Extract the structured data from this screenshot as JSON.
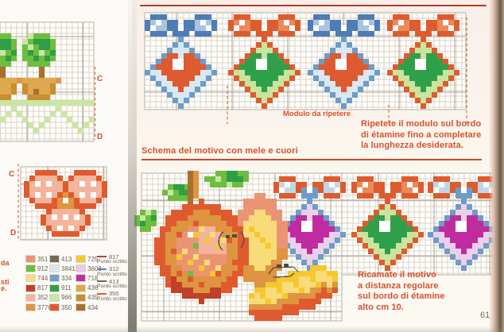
{
  "page": {
    "number": "61"
  },
  "left_page": {
    "fragments": [
      "da",
      "sti",
      "e."
    ],
    "markers": {
      "top": "C",
      "bottom": "D"
    },
    "legend": {
      "columns": [
        [
          {
            "code": "351"
          },
          {
            "code": "912"
          },
          {
            "code": "744"
          },
          {
            "code": "817"
          },
          {
            "code": "352"
          },
          {
            "code": "3776"
          }
        ],
        [
          {
            "code": "413"
          },
          {
            "code": "3841"
          },
          {
            "code": "334"
          },
          {
            "code": "911"
          },
          {
            "code": "966"
          },
          {
            "code": "350"
          }
        ],
        [
          {
            "code": "725"
          },
          {
            "code": "3608"
          },
          {
            "code": "718"
          },
          {
            "code": "436"
          },
          {
            "code": "435"
          },
          {
            "code": "434"
          }
        ]
      ],
      "stitch_lines": [
        {
          "code": "817",
          "label": "Punto scritto"
        },
        {
          "code": "312",
          "label": "Punto scritto"
        },
        {
          "code": "413",
          "label": "Punto scritto"
        },
        {
          "code": "350",
          "label": "Punto scritto"
        }
      ]
    }
  },
  "right_page": {
    "top_chart": {
      "caption": "Modulo da ripetere",
      "ornament_sequence": [
        "blue",
        "green",
        "blue",
        "green"
      ]
    },
    "repeat_note": "Ripetete il modulo sul bordo\ndi étamine fino a completare\nla lunghezza desiderata.",
    "section_title": "Schema del motivo con mele e cuori",
    "bottom_chart": {
      "ornament_sequence": [
        "lilac",
        "green",
        "lilac"
      ],
      "motifs": [
        "apple",
        "apple-half",
        "apple-slice",
        "heart-ornaments"
      ]
    },
    "stitch_note": "Ricamate il motivo\na distanza regolare\nsul bordo di étamine\nalto cm 10."
  },
  "palette": {
    "351": "#EA9473",
    "912": "#6DBE3E",
    "744": "#F8DC7A",
    "817": "#C04028",
    "352": "#F4B49C",
    "3776": "#DE9440",
    "413": "#6F6B55",
    "3841": "#D9E7EF",
    "334": "#6F9FCC",
    "911": "#2F9E44",
    "966": "#C9E6A2",
    "350": "#E05A30",
    "725": "#F6C82E",
    "3608": "#ECCAE6",
    "718": "#C22EA0",
    "436": "#DCA94E",
    "435": "#C98E2F",
    "434": "#A8702F",
    "312": "#5C7FAE",
    "white": "#FFFFFF"
  },
  "ornament_variants": {
    "blue": {
      "bow": "#4E7CB4",
      "bow_fill": "#A9C4DC",
      "knot": "#4E7CB4",
      "border": "#6E9CC8",
      "field": "#D9E8F0",
      "heart": "#DE5A30"
    },
    "green": {
      "bow": "#DD5C2E",
      "bow_fill": "#E98A5A",
      "knot": "#DD5C2E",
      "border": "#DD5C2E",
      "field": "#C9E49E",
      "heart": "#2FA04A"
    },
    "lilac": {
      "bow": "#DD5C2E",
      "bow_fill": "#BFD6E8",
      "knot": "#6E9CC8",
      "border": "#6E9CC8",
      "field": "#EBD0E9",
      "heart": "#C02CA0"
    }
  },
  "motif_maps": {
    "ornament_bow": [
      ".OOO.....OOO.",
      "OFWFOO.OOFWFO",
      "OWFFOKWKOFFWO",
      ".OOO.KKK.OOO."
    ],
    "heart": [
      ".HH...HH.",
      "HHHH.HHHH",
      "HHHWWHHHH",
      "HHHWWHHHH",
      ".HHHHHHH.",
      "..HHHHH..",
      "...HHH...",
      "....H...."
    ],
    "bow_gingham": [
      "..OOOO...OOOO..",
      ".OLLLLO.OLLLLO.",
      "OLWLWLLOLLWLWLO",
      "OLLLLLLOLLLLLLO",
      "OLWLWLOMOLWLWLO",
      ".OLLLOMWMOLLLO.",
      "..OOOOMMMOOOO..",
      "....OLLLLLO....",
      "...OLWLWLWLO...",
      "...OLLLLLLLO...",
      "....OLWLWLO....",
      ".....OOOOO....."
    ],
    "topiary_tree": [
      "..lggg..",
      ".lgGGGg.",
      ".glgGGg.",
      ".gGglgG.",
      ".ggGgGg.",
      "..gggg..",
      "....t...",
      "....t...",
      "mTTTTTTm",
      ".MTTTTM.",
      ".MTtTTM.",
      "..MMMM.."
    ],
    "leaf_right": [
      "..ggGGgg",
      "gglgGGGg",
      ".ggglgg."
    ],
    "leaf_left": [
      ".gGGg.",
      "glgGGg",
      ".gggg."
    ],
    "leaf_low": [
      ".glg.",
      "glgG.",
      "gGgg.",
      ".gg.."
    ]
  }
}
